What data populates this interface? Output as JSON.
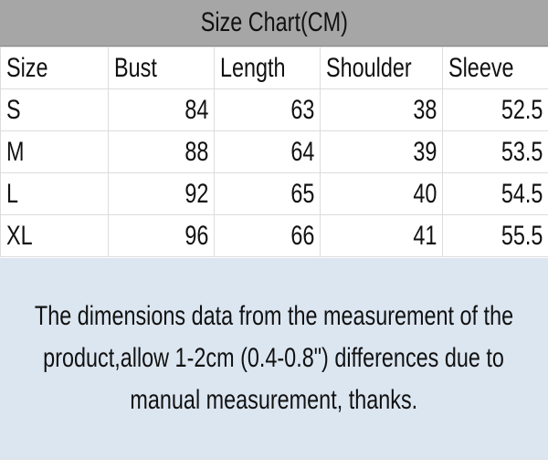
{
  "title": "Size Chart(CM)",
  "table": {
    "header": [
      "Size",
      "Bust",
      "Length",
      "Shoulder",
      "Sleeve"
    ],
    "rows": [
      [
        "S",
        84,
        63,
        38,
        52.5
      ],
      [
        "M",
        88,
        64,
        39,
        53.5
      ],
      [
        "L",
        92,
        65,
        40,
        54.5
      ],
      [
        "XL",
        96,
        66,
        41,
        55.5
      ]
    ]
  },
  "note": {
    "lines": [
      "The dimensions data from the measurement of the",
      "product,allow 1-2cm (0.4-0.8\") differences due to",
      "manual measurement, thanks."
    ]
  }
}
